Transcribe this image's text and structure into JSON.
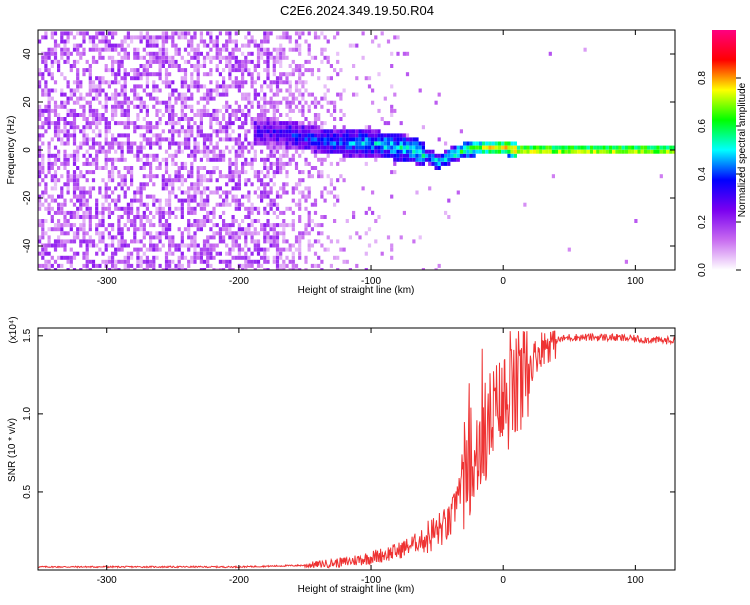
{
  "title": "C2E6.2024.349.19.50.R04",
  "chart_data": [
    {
      "type": "heatmap",
      "xlabel": "Height of straight line (km)",
      "ylabel": "Frequency (Hz)",
      "xlim": [
        -352,
        130
      ],
      "ylim": [
        -50,
        50
      ],
      "xticks": [
        -300,
        -200,
        -100,
        0,
        100
      ],
      "yticks": [
        -40,
        -20,
        0,
        20,
        40
      ],
      "colorbar": {
        "label": "Normalized spectral amplitude",
        "range": [
          0.0,
          1.0
        ],
        "ticks": [
          0.0,
          0.2,
          0.4,
          0.6,
          0.8
        ],
        "colormap": [
          "#ffffff",
          "#c86cf0",
          "#7a00f0",
          "#0000ff",
          "#00ffff",
          "#00ff00",
          "#ffff00",
          "#ff0000",
          "#ff0080"
        ]
      },
      "trace": {
        "x": [
          -180,
          -160,
          -140,
          -120,
          -100,
          -90,
          -80,
          -70,
          -60,
          -50,
          -40,
          -30,
          -20,
          -10,
          0,
          10,
          50,
          100,
          130
        ],
        "y": [
          8,
          6,
          4,
          3,
          3,
          2,
          1,
          0,
          -2,
          -5,
          -2,
          0,
          1,
          1,
          1,
          0,
          0,
          0,
          0
        ]
      }
    },
    {
      "type": "line",
      "xlabel": "Height of straight line (km)",
      "ylabel": "SNR (10 * v/v)",
      "scale_label": "(x10⁴)",
      "xlim": [
        -352,
        130
      ],
      "ylim": [
        0,
        1.55
      ],
      "xticks": [
        -300,
        -200,
        -100,
        0,
        100
      ],
      "yticks": [
        0.5,
        1.0,
        1.5
      ],
      "color": "#ee3333",
      "series": [
        {
          "x": [
            -352,
            -300,
            -250,
            -200,
            -150,
            -120,
            -100,
            -80,
            -60,
            -50,
            -40,
            -35,
            -30,
            -25,
            -20,
            -15,
            -10,
            -5,
            0,
            5,
            10,
            15,
            20,
            25,
            30,
            40,
            50,
            60,
            80,
            100,
            120,
            130
          ],
          "y": [
            0.02,
            0.02,
            0.02,
            0.02,
            0.03,
            0.05,
            0.08,
            0.12,
            0.2,
            0.25,
            0.3,
            0.45,
            0.6,
            0.7,
            0.75,
            0.85,
            0.95,
            1.0,
            1.05,
            1.1,
            1.15,
            1.2,
            1.3,
            1.38,
            1.43,
            1.47,
            1.49,
            1.49,
            1.49,
            1.48,
            1.47,
            1.47
          ]
        }
      ]
    }
  ]
}
